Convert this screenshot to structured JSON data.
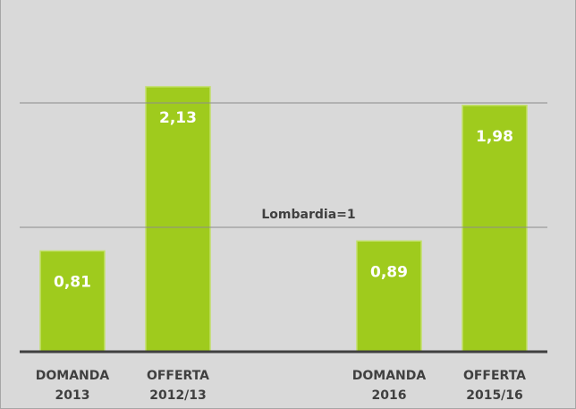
{
  "chart_data": {
    "type": "bar",
    "categories": [
      [
        "DOMANDA",
        "2013"
      ],
      [
        "OFFERTA",
        "2012/13"
      ],
      null,
      [
        "DOMANDA",
        "2016"
      ],
      [
        "OFFERTA",
        "2015/16"
      ]
    ],
    "values": [
      0.81,
      2.13,
      null,
      0.89,
      1.98
    ],
    "value_labels": [
      "0,81",
      "2,13",
      null,
      "0,89",
      "1,98"
    ],
    "color": "#9fcb1d",
    "ylim": [
      0,
      2.5
    ],
    "yticks": [
      0,
      1,
      2
    ],
    "grid": true,
    "annotation": {
      "text": "Lombardia=1",
      "value": 1
    }
  }
}
